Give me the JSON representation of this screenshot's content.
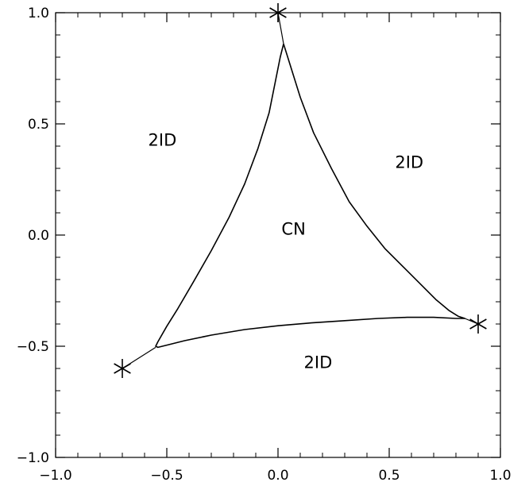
{
  "chart_data": {
    "type": "scatter",
    "title": "",
    "xlabel": "",
    "ylabel": "",
    "xlim": [
      -1.0,
      1.0
    ],
    "ylim": [
      -1.0,
      1.0
    ],
    "grid": false,
    "x_ticks": [
      {
        "value": -1.0,
        "label": "−1.0"
      },
      {
        "value": -0.5,
        "label": "−0.5"
      },
      {
        "value": 0.0,
        "label": "0.0"
      },
      {
        "value": 0.5,
        "label": "0.5"
      },
      {
        "value": 1.0,
        "label": "1.0"
      }
    ],
    "y_ticks": [
      {
        "value": -1.0,
        "label": "−1.0"
      },
      {
        "value": -0.5,
        "label": "−0.5"
      },
      {
        "value": 0.0,
        "label": "0.0"
      },
      {
        "value": 0.5,
        "label": "0.5"
      },
      {
        "value": 1.0,
        "label": "1.0"
      }
    ],
    "markers": [
      {
        "x": 0.0,
        "y": 1.0
      },
      {
        "x": -0.7,
        "y": -0.6
      },
      {
        "x": 0.9,
        "y": -0.4
      }
    ],
    "boundary_curve": [
      [
        0.025,
        0.86
      ],
      [
        0.05,
        0.78
      ],
      [
        0.1,
        0.62
      ],
      [
        0.16,
        0.46
      ],
      [
        0.24,
        0.3
      ],
      [
        0.32,
        0.15
      ],
      [
        0.4,
        0.04
      ],
      [
        0.48,
        -0.06
      ],
      [
        0.56,
        -0.14
      ],
      [
        0.64,
        -0.22
      ],
      [
        0.71,
        -0.29
      ],
      [
        0.77,
        -0.34
      ],
      [
        0.81,
        -0.365
      ],
      [
        0.84,
        -0.375
      ],
      [
        0.8,
        -0.375
      ],
      [
        0.7,
        -0.37
      ],
      [
        0.58,
        -0.37
      ],
      [
        0.45,
        -0.375
      ],
      [
        0.3,
        -0.385
      ],
      [
        0.15,
        -0.395
      ],
      [
        0.0,
        -0.408
      ],
      [
        -0.15,
        -0.425
      ],
      [
        -0.3,
        -0.45
      ],
      [
        -0.42,
        -0.475
      ],
      [
        -0.5,
        -0.495
      ],
      [
        -0.54,
        -0.505
      ],
      [
        -0.55,
        -0.5
      ],
      [
        -0.54,
        -0.48
      ],
      [
        -0.5,
        -0.41
      ],
      [
        -0.45,
        -0.33
      ],
      [
        -0.38,
        -0.21
      ],
      [
        -0.3,
        -0.07
      ],
      [
        -0.22,
        0.08
      ],
      [
        -0.15,
        0.23
      ],
      [
        -0.09,
        0.39
      ],
      [
        -0.04,
        0.55
      ],
      [
        -0.01,
        0.7
      ],
      [
        0.01,
        0.8
      ],
      [
        0.02,
        0.84
      ],
      [
        0.025,
        0.86
      ]
    ],
    "connector_segments": [
      [
        [
          0.0,
          1.0
        ],
        [
          0.025,
          0.86
        ]
      ],
      [
        [
          -0.7,
          -0.6
        ],
        [
          -0.55,
          -0.505
        ]
      ],
      [
        [
          0.9,
          -0.4
        ],
        [
          0.84,
          -0.375
        ]
      ]
    ],
    "annotations": [
      {
        "text": "2ID",
        "x": -0.52,
        "y": 0.43
      },
      {
        "text": "2ID",
        "x": 0.59,
        "y": 0.33
      },
      {
        "text": "CN",
        "x": 0.07,
        "y": 0.03
      },
      {
        "text": "2ID",
        "x": 0.18,
        "y": -0.57
      }
    ]
  }
}
